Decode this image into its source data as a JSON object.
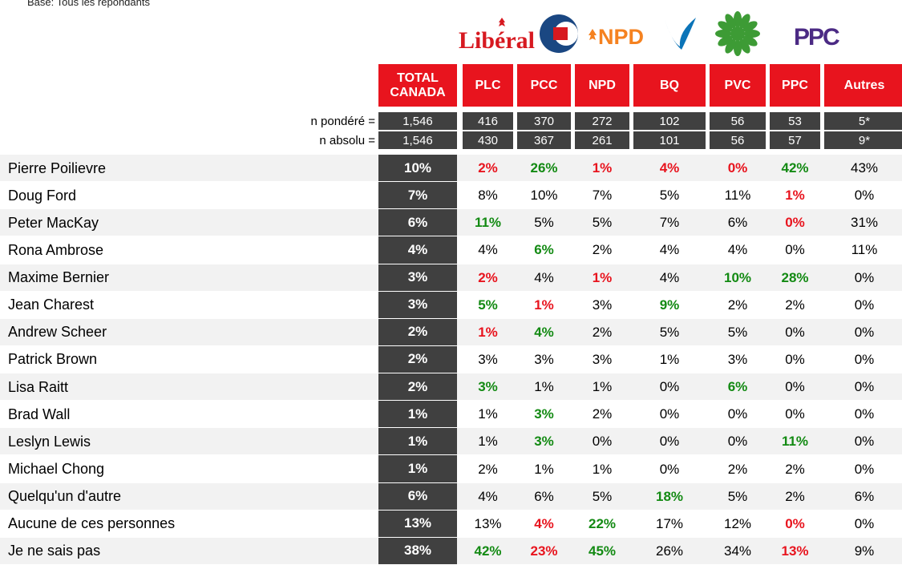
{
  "base": "Base: Tous les répondants",
  "logos": {
    "liberal": "Libéral",
    "npd": "NPD",
    "ppc": "PPC"
  },
  "columns": [
    "TOTAL CANADA",
    "PLC",
    "PCC",
    "NPD",
    "BQ",
    "PVC",
    "PPC",
    "Autres"
  ],
  "weighted": {
    "label": "n pondéré =",
    "values": [
      "1,546",
      "416",
      "370",
      "272",
      "102",
      "56",
      "53",
      "5*"
    ]
  },
  "absolute": {
    "label": "n absolu =",
    "values": [
      "1,546",
      "430",
      "367",
      "261",
      "101",
      "56",
      "57",
      "9*"
    ]
  },
  "rows": [
    {
      "label": "Pierre Poilievre",
      "cells": [
        "10%",
        "2%",
        "26%",
        "1%",
        "4%",
        "0%",
        "42%",
        "43%"
      ],
      "colors": [
        null,
        "#e8141e",
        "#138a13",
        "#e8141e",
        "#e8141e",
        "#e8141e",
        "#138a13",
        null
      ]
    },
    {
      "label": "Doug Ford",
      "cells": [
        "7%",
        "8%",
        "10%",
        "7%",
        "5%",
        "11%",
        "1%",
        "0%"
      ],
      "colors": [
        null,
        null,
        null,
        null,
        null,
        null,
        "#e8141e",
        null
      ]
    },
    {
      "label": "Peter MacKay",
      "cells": [
        "6%",
        "11%",
        "5%",
        "5%",
        "7%",
        "6%",
        "0%",
        "31%"
      ],
      "colors": [
        null,
        "#138a13",
        null,
        null,
        null,
        null,
        "#e8141e",
        null
      ]
    },
    {
      "label": "Rona Ambrose",
      "cells": [
        "4%",
        "4%",
        "6%",
        "2%",
        "4%",
        "4%",
        "0%",
        "11%"
      ],
      "colors": [
        null,
        null,
        "#138a13",
        null,
        null,
        null,
        null,
        null
      ]
    },
    {
      "label": "Maxime Bernier",
      "cells": [
        "3%",
        "2%",
        "4%",
        "1%",
        "4%",
        "10%",
        "28%",
        "0%"
      ],
      "colors": [
        null,
        "#e8141e",
        null,
        "#e8141e",
        null,
        "#138a13",
        "#138a13",
        null
      ]
    },
    {
      "label": "Jean Charest",
      "cells": [
        "3%",
        "5%",
        "1%",
        "3%",
        "9%",
        "2%",
        "2%",
        "0%"
      ],
      "colors": [
        null,
        "#138a13",
        "#e8141e",
        null,
        "#138a13",
        null,
        null,
        null
      ]
    },
    {
      "label": "Andrew Scheer",
      "cells": [
        "2%",
        "1%",
        "4%",
        "2%",
        "5%",
        "5%",
        "0%",
        "0%"
      ],
      "colors": [
        null,
        "#e8141e",
        "#138a13",
        null,
        null,
        null,
        null,
        null
      ]
    },
    {
      "label": "Patrick Brown",
      "cells": [
        "2%",
        "3%",
        "3%",
        "3%",
        "1%",
        "3%",
        "0%",
        "0%"
      ],
      "colors": [
        null,
        null,
        null,
        null,
        null,
        null,
        null,
        null
      ]
    },
    {
      "label": "Lisa Raitt",
      "cells": [
        "2%",
        "3%",
        "1%",
        "1%",
        "0%",
        "6%",
        "0%",
        "0%"
      ],
      "colors": [
        null,
        "#138a13",
        null,
        null,
        null,
        "#138a13",
        null,
        null
      ]
    },
    {
      "label": "Brad Wall",
      "cells": [
        "1%",
        "1%",
        "3%",
        "2%",
        "0%",
        "0%",
        "0%",
        "0%"
      ],
      "colors": [
        null,
        null,
        "#138a13",
        null,
        null,
        null,
        null,
        null
      ]
    },
    {
      "label": "Leslyn Lewis",
      "cells": [
        "1%",
        "1%",
        "3%",
        "0%",
        "0%",
        "0%",
        "11%",
        "0%"
      ],
      "colors": [
        null,
        null,
        "#138a13",
        null,
        null,
        null,
        "#138a13",
        null
      ]
    },
    {
      "label": "Michael Chong",
      "cells": [
        "1%",
        "2%",
        "1%",
        "1%",
        "0%",
        "2%",
        "2%",
        "0%"
      ],
      "colors": [
        null,
        null,
        null,
        null,
        null,
        null,
        null,
        null
      ]
    },
    {
      "label": "Quelqu'un d'autre",
      "cells": [
        "6%",
        "4%",
        "6%",
        "5%",
        "18%",
        "5%",
        "2%",
        "6%"
      ],
      "colors": [
        null,
        null,
        null,
        null,
        "#138a13",
        null,
        null,
        null
      ]
    },
    {
      "label": "Aucune de ces personnes",
      "cells": [
        "13%",
        "13%",
        "4%",
        "22%",
        "17%",
        "12%",
        "0%",
        "0%"
      ],
      "colors": [
        null,
        null,
        "#e8141e",
        "#138a13",
        null,
        null,
        "#e8141e",
        null
      ]
    },
    {
      "label": "Je ne sais pas",
      "cells": [
        "38%",
        "42%",
        "23%",
        "45%",
        "26%",
        "34%",
        "13%",
        "9%"
      ],
      "colors": [
        null,
        "#138a13",
        "#e8141e",
        "#138a13",
        null,
        null,
        "#e8141e",
        null
      ]
    }
  ]
}
